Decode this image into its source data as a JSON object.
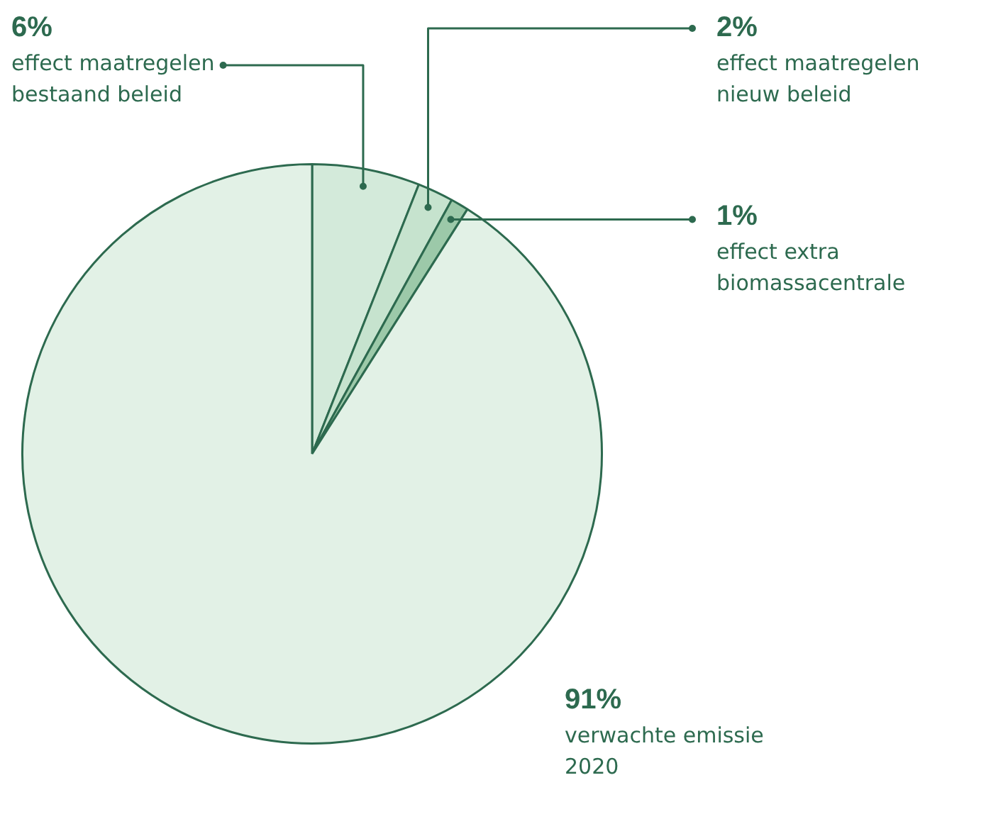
{
  "chart_data": {
    "type": "pie",
    "categories": [
      "effect maatregelen bestaand beleid",
      "effect maatregelen nieuw beleid",
      "effect extra biomassacentrale",
      "verwachte emissie 2020"
    ],
    "values": [
      6,
      2,
      1,
      91
    ],
    "value_labels": [
      "6%",
      "2%",
      "1%",
      "91%"
    ],
    "colors": [
      "#d3eada",
      "#c6e3ce",
      "#9cc9a9",
      "#e2f1e6"
    ],
    "legend": false
  }
}
